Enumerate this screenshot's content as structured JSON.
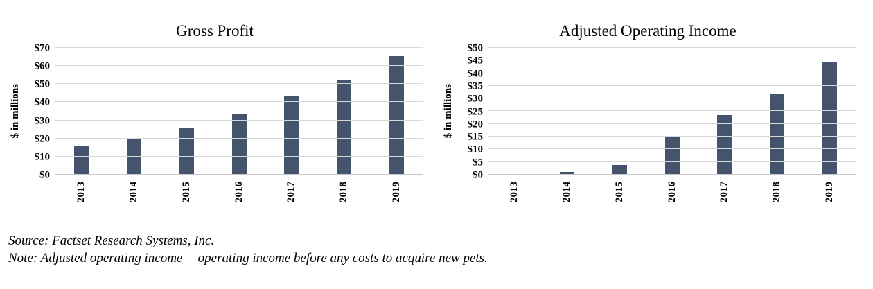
{
  "colors": {
    "bar": "#44546A",
    "gridline": "#D9D9D9",
    "axis_line": "#C6C6C6",
    "text": "#000000"
  },
  "footer": {
    "source": "Source: Factset Research Systems, Inc.",
    "note": "Note: Adjusted operating income = operating income before any costs to acquire new pets."
  },
  "chart_data": [
    {
      "type": "bar",
      "title": "Gross Profit",
      "ylabel": "$ in millions",
      "xlabel": "",
      "categories": [
        "2013",
        "2014",
        "2015",
        "2016",
        "2017",
        "2018",
        "2019"
      ],
      "values": [
        15.7,
        19.7,
        25.4,
        33.3,
        42.8,
        51.7,
        64.9
      ],
      "ylim": [
        0,
        70
      ],
      "grid": true,
      "legend": "none",
      "yticks": [
        {
          "value": 70,
          "label": "$70"
        },
        {
          "value": 60,
          "label": "$60"
        },
        {
          "value": 50,
          "label": "$50"
        },
        {
          "value": 40,
          "label": "$40"
        },
        {
          "value": 30,
          "label": "$30"
        },
        {
          "value": 20,
          "label": "$20"
        },
        {
          "value": 10,
          "label": "$10"
        },
        {
          "value": 0,
          "label": "$0"
        }
      ]
    },
    {
      "type": "bar",
      "title": "Adjusted Operating Income",
      "ylabel": "$ in millions",
      "xlabel": "",
      "categories": [
        "2013",
        "2014",
        "2015",
        "2016",
        "2017",
        "2018",
        "2019"
      ],
      "values": [
        0,
        0.8,
        3.5,
        14.8,
        23.3,
        31.5,
        44.0
      ],
      "ylim": [
        0,
        50
      ],
      "grid": true,
      "legend": "none",
      "yticks": [
        {
          "value": 50,
          "label": "$50"
        },
        {
          "value": 45,
          "label": "$45"
        },
        {
          "value": 40,
          "label": "$40"
        },
        {
          "value": 35,
          "label": "$35"
        },
        {
          "value": 30,
          "label": "$30"
        },
        {
          "value": 25,
          "label": "$25"
        },
        {
          "value": 20,
          "label": "$20"
        },
        {
          "value": 15,
          "label": "$15"
        },
        {
          "value": 10,
          "label": "$10"
        },
        {
          "value": 5,
          "label": "$5"
        },
        {
          "value": 0,
          "label": "$0"
        }
      ]
    }
  ]
}
